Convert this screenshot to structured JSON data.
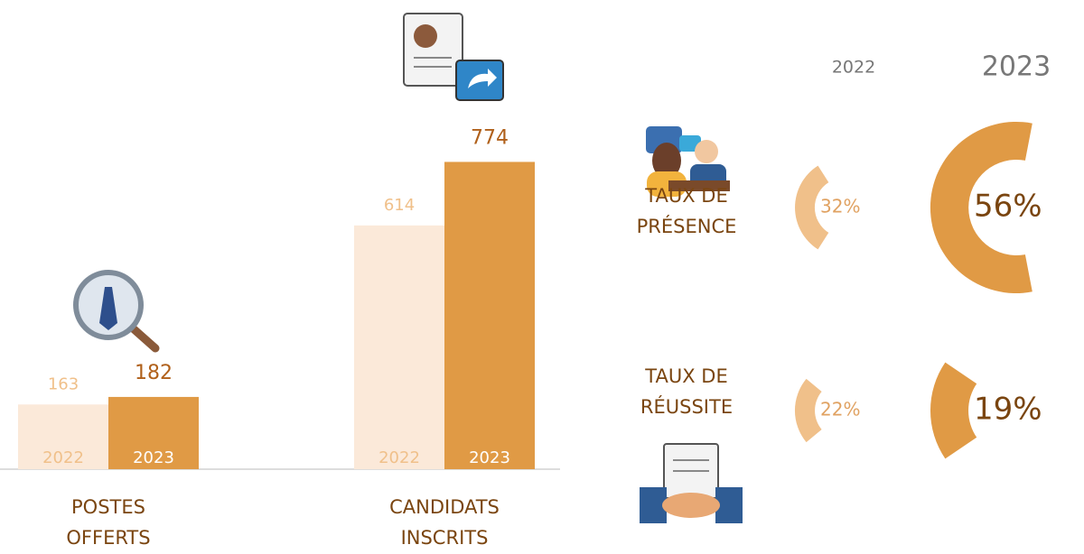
{
  "chart_data": [
    {
      "type": "bar",
      "title": "POSTES OFFERTS",
      "categories": [
        "2022",
        "2023"
      ],
      "values": [
        163,
        182
      ],
      "colors": [
        "#fbe9d9",
        "#e09a45"
      ],
      "ylim": [
        0,
        1000
      ]
    },
    {
      "type": "bar",
      "title": "CANDIDATS INSCRITS",
      "categories": [
        "2022",
        "2023"
      ],
      "values": [
        614,
        774
      ],
      "colors": [
        "#fbe9d9",
        "#e09a45"
      ],
      "ylim": [
        0,
        1000
      ]
    },
    {
      "type": "arc",
      "title": "TAUX DE PRÉSENCE",
      "categories": [
        "2022",
        "2023"
      ],
      "values": [
        32,
        56
      ],
      "value_labels": [
        "32%",
        "56%"
      ],
      "colors": [
        "#f0c08a",
        "#e09a45"
      ]
    },
    {
      "type": "arc",
      "title": "TAUX DE RÉUSSITE",
      "categories": [
        "2022",
        "2023"
      ],
      "values": [
        22,
        19
      ],
      "value_labels": [
        "22%",
        "19%"
      ],
      "colors": [
        "#f0c08a",
        "#e09a45"
      ]
    }
  ]
}
